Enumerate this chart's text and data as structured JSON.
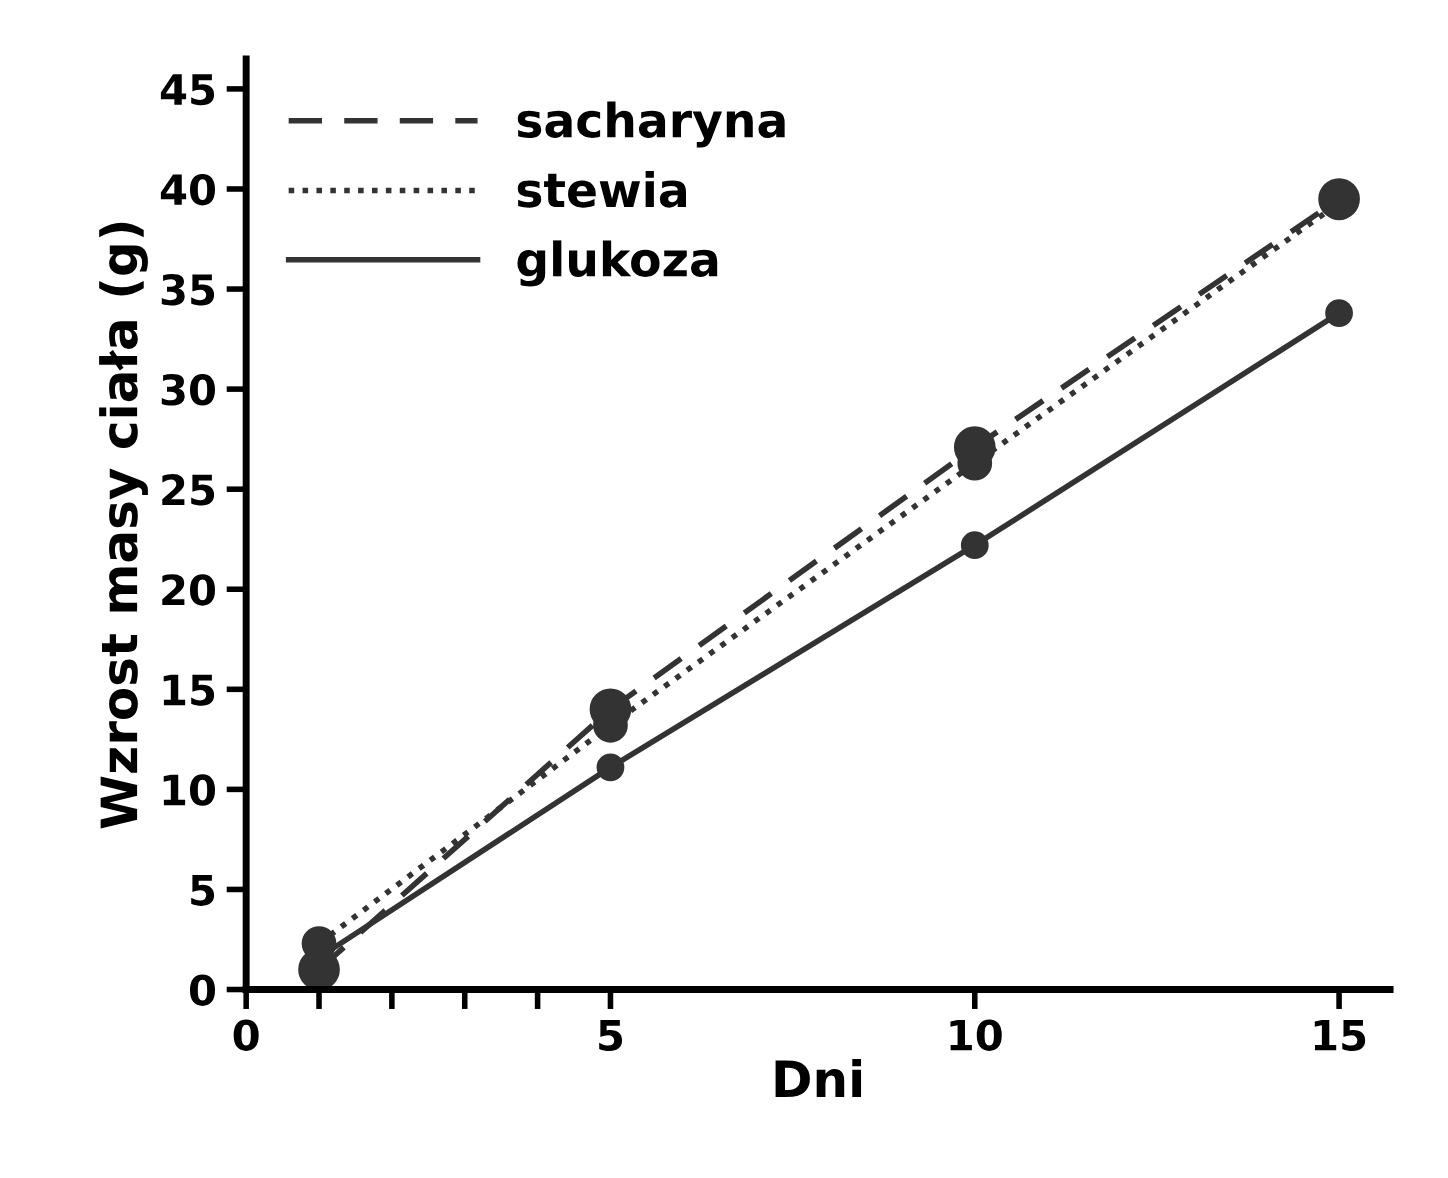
{
  "chart_data": {
    "type": "line",
    "xlabel": "Dni",
    "ylabel": "Wzrost masy ciała (g)",
    "x": [
      1,
      5,
      10,
      15
    ],
    "series": [
      {
        "name": "sacharyna",
        "color": "#333333",
        "line_style": "dashed",
        "values": [
          1.0,
          14.0,
          27.1,
          39.5
        ]
      },
      {
        "name": "stewia",
        "color": "#333333",
        "line_style": "dotted",
        "values": [
          2.3,
          13.2,
          26.3,
          39.3
        ]
      },
      {
        "name": "glukoza",
        "color": "#333333",
        "line_style": "solid",
        "values": [
          1.6,
          11.1,
          22.2,
          33.8
        ]
      }
    ],
    "marker": "circle",
    "xlim": [
      0,
      15.7
    ],
    "ylim": [
      0,
      46.5
    ],
    "xticks": [
      0,
      {
        "value": 1,
        "label": null
      },
      {
        "value": 2,
        "label": null
      },
      {
        "value": 3,
        "label": null
      },
      {
        "value": 4,
        "label": null
      },
      5,
      10,
      15
    ],
    "yticks": [
      0,
      5,
      10,
      15,
      20,
      25,
      30,
      35,
      40,
      45
    ],
    "grid": false,
    "legend": "top left"
  }
}
